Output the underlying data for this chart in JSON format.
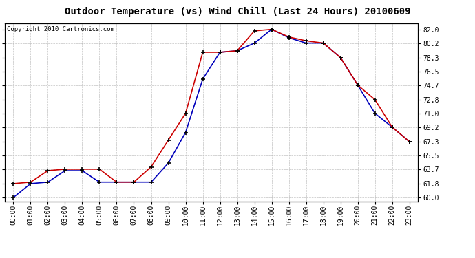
{
  "title": "Outdoor Temperature (vs) Wind Chill (Last 24 Hours) 20100609",
  "copyright": "Copyright 2010 Cartronics.com",
  "hours": [
    "00:00",
    "01:00",
    "02:00",
    "03:00",
    "04:00",
    "05:00",
    "06:00",
    "07:00",
    "08:00",
    "09:00",
    "10:00",
    "11:00",
    "12:00",
    "13:00",
    "14:00",
    "15:00",
    "16:00",
    "17:00",
    "18:00",
    "19:00",
    "20:00",
    "21:00",
    "22:00",
    "23:00"
  ],
  "temp": [
    61.8,
    62.0,
    63.5,
    63.7,
    63.7,
    63.7,
    62.0,
    62.0,
    64.0,
    67.5,
    71.0,
    79.0,
    79.0,
    79.2,
    81.8,
    82.0,
    81.0,
    80.5,
    80.2,
    78.3,
    74.7,
    72.8,
    69.2,
    67.3
  ],
  "windchill": [
    60.0,
    61.8,
    62.0,
    63.5,
    63.5,
    62.0,
    62.0,
    62.0,
    62.0,
    64.5,
    68.5,
    75.5,
    79.0,
    79.2,
    80.2,
    82.0,
    80.9,
    80.2,
    80.2,
    78.3,
    74.7,
    71.0,
    69.2,
    67.3
  ],
  "yticks": [
    60.0,
    61.8,
    63.7,
    65.5,
    67.3,
    69.2,
    71.0,
    72.8,
    74.7,
    76.5,
    78.3,
    80.2,
    82.0
  ],
  "ymin": 59.5,
  "ymax": 82.8,
  "temp_color": "#cc0000",
  "windchill_color": "#0000bb",
  "bg_color": "#ffffff",
  "grid_color": "#bbbbbb",
  "title_fontsize": 10,
  "copyright_fontsize": 6.5,
  "tick_fontsize": 7
}
